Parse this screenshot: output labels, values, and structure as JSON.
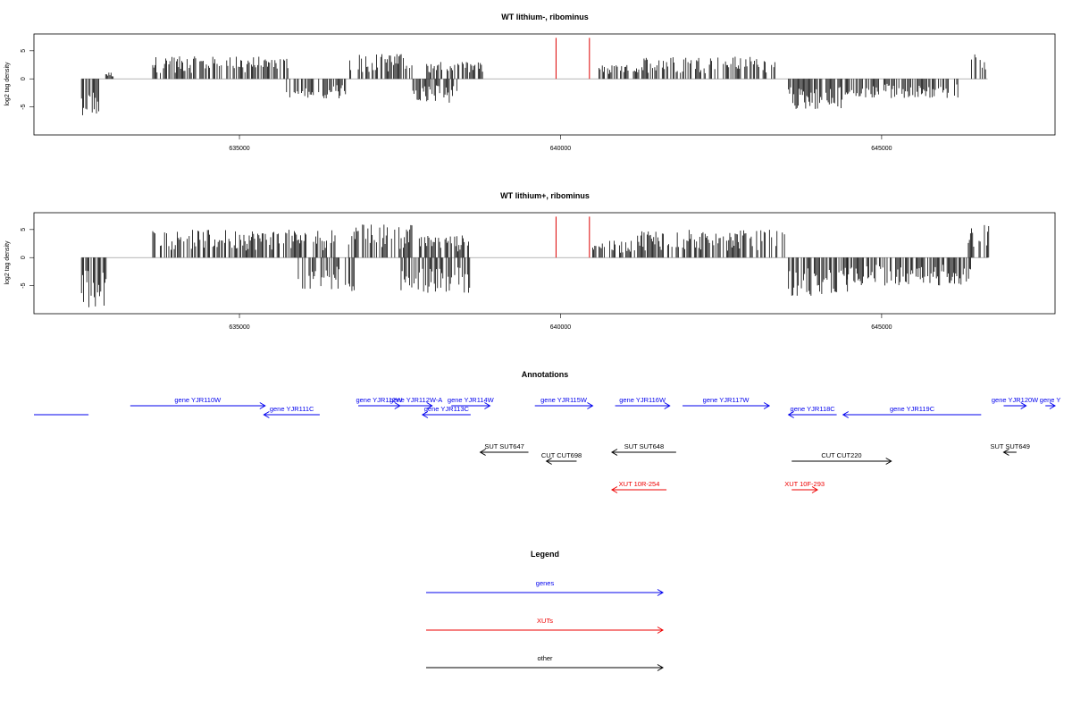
{
  "chart_data": [
    {
      "type": "bar",
      "title": "WT lithium-, ribominus",
      "xlabel": "",
      "ylabel": "log2 tag density",
      "xlim": [
        631800,
        647700
      ],
      "ylim": [
        -10,
        8
      ],
      "xticks": [
        635000,
        640000,
        645000
      ],
      "xtick_labels": [
        "635000",
        "640000",
        "645000"
      ],
      "yticks": [
        5,
        0,
        -5
      ],
      "ytick_labels": [
        "5",
        "0",
        "-5"
      ],
      "highlight_color": "#dd0000",
      "series": [
        {
          "values": [
            {
              "x": 639930,
              "y": 7.3
            },
            {
              "x": 640450,
              "y": 7.3
            }
          ]
        }
      ],
      "density_profile": [
        {
          "from": 632540,
          "to": 632850,
          "sign": "minus",
          "max": 6.5
        },
        {
          "from": 632900,
          "to": 633050,
          "sign": "plus",
          "max": 1.2
        },
        {
          "from": 633650,
          "to": 635800,
          "sign": "plus",
          "max": 4.0
        },
        {
          "from": 635700,
          "to": 636700,
          "sign": "minus",
          "max": 3.5
        },
        {
          "from": 636700,
          "to": 637700,
          "sign": "plus",
          "max": 4.5
        },
        {
          "from": 637700,
          "to": 638400,
          "sign": "minus",
          "max": 4.5
        },
        {
          "from": 637900,
          "to": 638800,
          "sign": "plus",
          "max": 3.0
        },
        {
          "from": 640600,
          "to": 641300,
          "sign": "plus",
          "max": 2.5
        },
        {
          "from": 641300,
          "to": 643400,
          "sign": "plus",
          "max": 4.0
        },
        {
          "from": 643550,
          "to": 644400,
          "sign": "minus",
          "max": 5.5
        },
        {
          "from": 644400,
          "to": 646200,
          "sign": "minus",
          "max": 3.5
        },
        {
          "from": 646400,
          "to": 646650,
          "sign": "plus",
          "max": 4.5
        }
      ]
    },
    {
      "type": "bar",
      "title": "WT lithium+, ribominus",
      "xlabel": "",
      "ylabel": "log2 tag density",
      "xlim": [
        631800,
        647700
      ],
      "ylim": [
        -10,
        8
      ],
      "xticks": [
        635000,
        640000,
        645000
      ],
      "xtick_labels": [
        "635000",
        "640000",
        "645000"
      ],
      "yticks": [
        5,
        0,
        -5
      ],
      "ytick_labels": [
        "5",
        "0",
        "-5"
      ],
      "highlight_color": "#dd0000",
      "series": [
        {
          "values": [
            {
              "x": 639930,
              "y": 7.3
            },
            {
              "x": 640450,
              "y": 7.3
            }
          ]
        }
      ],
      "density_profile": [
        {
          "from": 632540,
          "to": 632950,
          "sign": "minus",
          "max": 9.0
        },
        {
          "from": 633650,
          "to": 636500,
          "sign": "plus",
          "max": 5.0
        },
        {
          "from": 635900,
          "to": 636800,
          "sign": "minus",
          "max": 6.0
        },
        {
          "from": 636700,
          "to": 637700,
          "sign": "plus",
          "max": 6.0
        },
        {
          "from": 637500,
          "to": 638600,
          "sign": "minus",
          "max": 6.5
        },
        {
          "from": 637800,
          "to": 638600,
          "sign": "plus",
          "max": 4.0
        },
        {
          "from": 640500,
          "to": 641200,
          "sign": "plus",
          "max": 3.0
        },
        {
          "from": 641200,
          "to": 643500,
          "sign": "plus",
          "max": 5.0
        },
        {
          "from": 643550,
          "to": 644500,
          "sign": "minus",
          "max": 7.0
        },
        {
          "from": 644400,
          "to": 646400,
          "sign": "minus",
          "max": 5.0
        },
        {
          "from": 646350,
          "to": 646700,
          "sign": "plus",
          "max": 6.0
        }
      ]
    }
  ],
  "annotations": {
    "title": "Annotations",
    "colors": {
      "genes": "#0000ee",
      "xuts": "#ee0000",
      "other": "#000000"
    },
    "features": [
      {
        "label": "",
        "category": "genes",
        "start": 631800,
        "end": 632650,
        "strand": "none",
        "row": 1
      },
      {
        "label": "gene YJR110W",
        "category": "genes",
        "start": 633300,
        "end": 635400,
        "strand": "+",
        "row": 0
      },
      {
        "label": "gene YJR111C",
        "category": "genes",
        "start": 635380,
        "end": 636250,
        "strand": "-",
        "row": 1
      },
      {
        "label": "gene YJR112W",
        "category": "genes",
        "start": 636850,
        "end": 637500,
        "strand": "+",
        "row": 0
      },
      {
        "label": "gene YJR112W-A",
        "category": "genes",
        "start": 637500,
        "end": 638000,
        "strand": "+",
        "row": 0
      },
      {
        "label": "gene YJR113C",
        "category": "genes",
        "start": 637850,
        "end": 638600,
        "strand": "-",
        "row": 1
      },
      {
        "label": "gene YJR114W",
        "category": "genes",
        "start": 638300,
        "end": 638900,
        "strand": "+",
        "row": 0
      },
      {
        "label": "gene YJR115W",
        "category": "genes",
        "start": 639600,
        "end": 640500,
        "strand": "+",
        "row": 0
      },
      {
        "label": "gene YJR116W",
        "category": "genes",
        "start": 640850,
        "end": 641700,
        "strand": "+",
        "row": 0
      },
      {
        "label": "gene YJR117W",
        "category": "genes",
        "start": 641900,
        "end": 643250,
        "strand": "+",
        "row": 0
      },
      {
        "label": "gene YJR118C",
        "category": "genes",
        "start": 643550,
        "end": 644300,
        "strand": "-",
        "row": 1
      },
      {
        "label": "gene YJR119C",
        "category": "genes",
        "start": 644400,
        "end": 646550,
        "strand": "-",
        "row": 1
      },
      {
        "label": "gene YJR120W",
        "category": "genes",
        "start": 646900,
        "end": 647250,
        "strand": "+",
        "row": 0
      },
      {
        "label": "gene Y",
        "category": "genes",
        "start": 647550,
        "end": 647700,
        "strand": "+",
        "row": 0
      },
      {
        "label": "SUT SUT647",
        "category": "other",
        "start": 638750,
        "end": 639500,
        "strand": "-",
        "row": 2
      },
      {
        "label": "SUT SUT648",
        "category": "other",
        "start": 640800,
        "end": 641800,
        "strand": "-",
        "row": 2
      },
      {
        "label": "SUT SUT649",
        "category": "other",
        "start": 646900,
        "end": 647100,
        "strand": "-",
        "row": 2
      },
      {
        "label": "CUT CUT698",
        "category": "other",
        "start": 639780,
        "end": 640250,
        "strand": "-",
        "row": 3
      },
      {
        "label": "CUT CUT220",
        "category": "other",
        "start": 643600,
        "end": 645150,
        "strand": "+",
        "row": 3
      },
      {
        "label": "XUT 10R-254",
        "category": "xuts",
        "start": 640800,
        "end": 641650,
        "strand": "-",
        "row": 4
      },
      {
        "label": "XUT 10F-293",
        "category": "xuts",
        "start": 643600,
        "end": 644000,
        "strand": "+",
        "row": 4
      }
    ]
  },
  "legend": {
    "title": "Legend",
    "items": [
      {
        "label": "genes",
        "color": "#0000ee"
      },
      {
        "label": "XUTs",
        "color": "#ee0000"
      },
      {
        "label": "other",
        "color": "#000000"
      }
    ]
  }
}
